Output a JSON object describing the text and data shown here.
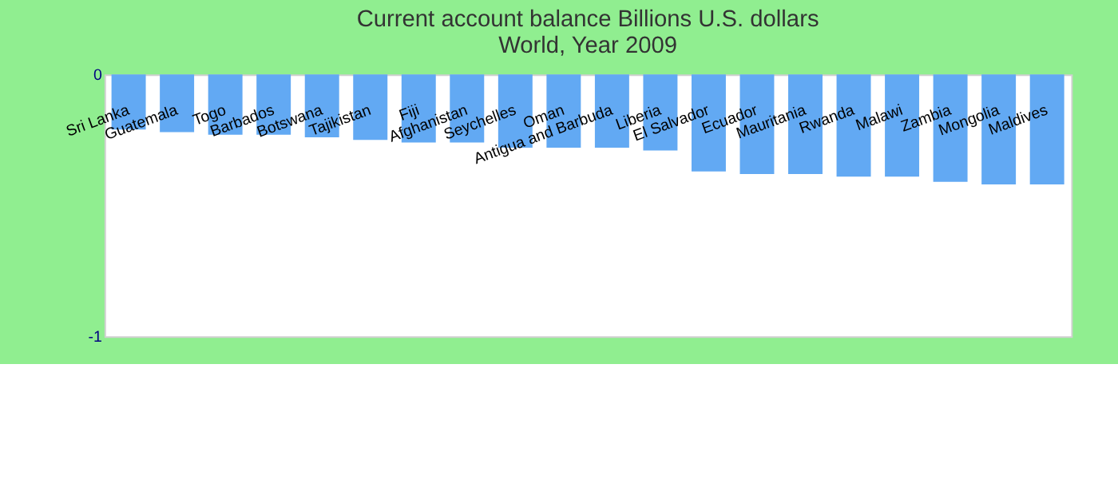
{
  "chart_data": {
    "type": "bar",
    "title": "Current account balance Billions U.S. dollars",
    "subtitle": "World, Year 2009",
    "categories": [
      "Sri Lanka",
      "Guatemala",
      "Togo",
      "Barbados",
      "Botswana",
      "Tajikistan",
      "Fiji",
      "Afghanistan",
      "Seychelles",
      "Oman",
      "Antigua and Barbuda",
      "Liberia",
      "El Salvador",
      "Ecuador",
      "Mauritania",
      "Rwanda",
      "Malawi",
      "Zambia",
      "Mongolia",
      "Maldives"
    ],
    "values": [
      -0.21,
      -0.22,
      -0.23,
      -0.23,
      -0.24,
      -0.25,
      -0.26,
      -0.26,
      -0.28,
      -0.28,
      -0.28,
      -0.29,
      -0.37,
      -0.38,
      -0.38,
      -0.39,
      -0.39,
      -0.41,
      -0.42,
      -0.42
    ],
    "color": "#62a9f3",
    "ylim": [
      -1,
      0
    ],
    "yticks": [
      -1,
      0
    ],
    "grid": false
  }
}
